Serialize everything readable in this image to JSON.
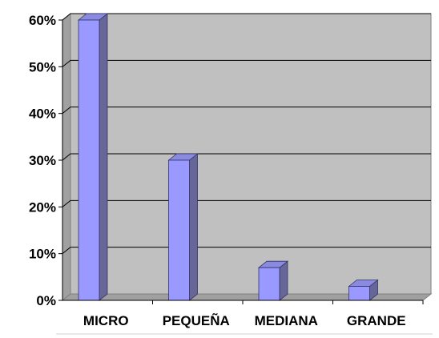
{
  "chart_data": {
    "type": "bar",
    "title": "",
    "xlabel": "",
    "ylabel": "",
    "categories": [
      "MICRO",
      "PEQUEÑA",
      "MEDIANA",
      "GRANDE"
    ],
    "values": [
      60,
      30,
      7,
      3
    ],
    "value_unit": "%",
    "ylim": [
      0,
      60
    ],
    "yticks": [
      0,
      10,
      20,
      30,
      40,
      50,
      60
    ],
    "ytick_labels": [
      "0%",
      "10%",
      "20%",
      "30%",
      "40%",
      "50%",
      "60%"
    ],
    "grid": true,
    "legend": "none",
    "style": "3d-columns",
    "colors": {
      "bar_front": "#9999ff",
      "bar_top": "#8a8ae0",
      "bar_side": "#666699",
      "plot_back": "#c0c0c0",
      "plot_floor": "#a0a0a0",
      "grid_line": "#000000"
    }
  }
}
